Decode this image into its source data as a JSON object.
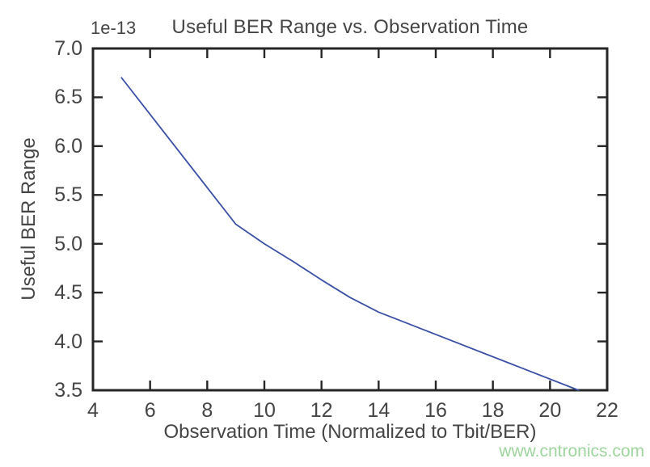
{
  "figure": {
    "title": "Useful BER Range vs. Observation Time",
    "offset_label": "1e-13",
    "xlabel": "Observation Time (Normalized to Tbit/BER)",
    "ylabel": "Useful BER Range",
    "watermark": "www.cntronics.com"
  },
  "colors": {
    "background": "#ffffff",
    "line": "#3b50a5",
    "axis": "#262626",
    "text": "#454545",
    "watermark": "#9fd49f"
  },
  "chart_data": {
    "type": "line",
    "title": "Useful BER Range vs. Observation Time",
    "xlabel": "Observation Time (Normalized to Tbit/BER)",
    "ylabel": "Useful BER Range",
    "y_unit_multiplier": "1e-13",
    "x": [
      5,
      9,
      10,
      11,
      12,
      13,
      14,
      21
    ],
    "y": [
      6.7,
      5.2,
      5.0,
      4.82,
      4.63,
      4.45,
      4.3,
      3.5
    ],
    "xlim": [
      4,
      22
    ],
    "ylim": [
      3.5,
      7.0
    ],
    "x_ticks": [
      4,
      6,
      8,
      10,
      12,
      14,
      16,
      18,
      20,
      22
    ],
    "y_ticks": [
      3.5,
      4.0,
      4.5,
      5.0,
      5.5,
      6.0,
      6.5,
      7.0
    ],
    "x_tick_labels": [
      "4",
      "6",
      "8",
      "10",
      "12",
      "14",
      "16",
      "18",
      "20",
      "22"
    ],
    "y_tick_labels": [
      "3.5",
      "4.0",
      "4.5",
      "5.0",
      "5.5",
      "6.0",
      "6.5",
      "7.0"
    ],
    "grid": false,
    "legend": null,
    "line_style": "solid",
    "marker": "none"
  }
}
